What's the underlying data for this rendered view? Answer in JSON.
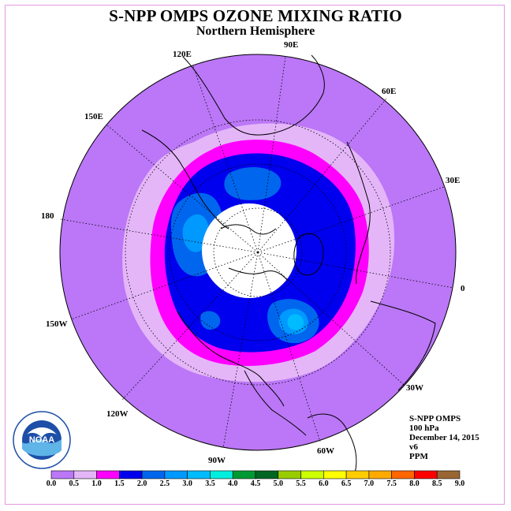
{
  "title": "S-NPP OMPS OZONE MIXING RATIO",
  "subtitle": "Northern Hemisphere",
  "longitude_labels": [
    "90E",
    "60E",
    "30E",
    "0",
    "30W",
    "60W",
    "90W",
    "120W",
    "150W",
    "180",
    "150E",
    "120E"
  ],
  "info": {
    "instrument": "S-NPP OMPS",
    "level": "100 hPa",
    "date": "December 14, 2015",
    "version": "v6",
    "units": "PPM"
  },
  "logo_text": "NOAA",
  "colorbar": {
    "ticks": [
      "0.0",
      "0.5",
      "1.0",
      "1.5",
      "2.0",
      "2.5",
      "3.0",
      "3.5",
      "4.0",
      "4.5",
      "5.0",
      "5.5",
      "6.0",
      "6.5",
      "7.0",
      "7.5",
      "8.0",
      "8.5",
      "9.0"
    ],
    "colors": [
      "#bb77f7",
      "#e4b6f8",
      "#ff00ff",
      "#0000ee",
      "#0066ee",
      "#0099ff",
      "#00bbff",
      "#00eedd",
      "#009933",
      "#006622",
      "#99cc00",
      "#ccff00",
      "#ffff00",
      "#ffcc00",
      "#ffaa00",
      "#ff6600",
      "#ff0000",
      "#996633"
    ]
  },
  "colors": {
    "background_field": "#bb77f7",
    "no_data": "#ffffff",
    "frame": "#e59ae5"
  }
}
